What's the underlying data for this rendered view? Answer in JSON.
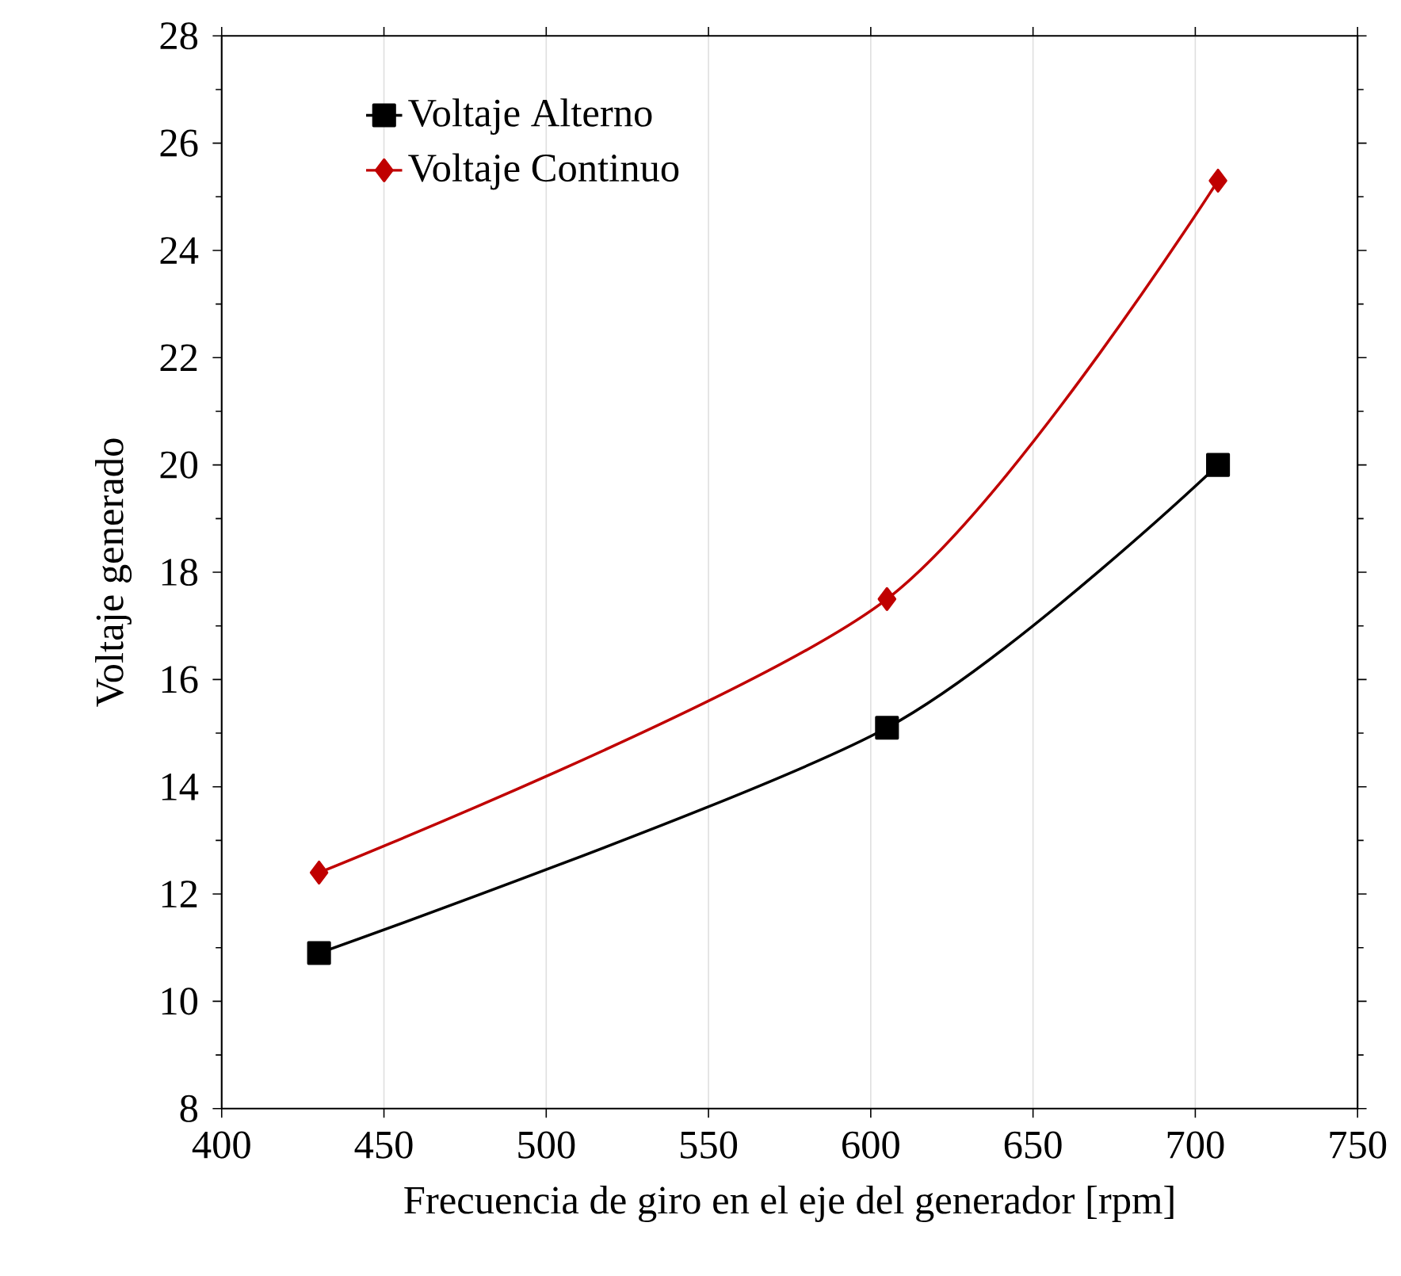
{
  "chart_data": {
    "type": "line",
    "xlabel": "Frecuencia de giro en el eje del generador [rpm]",
    "ylabel": "Voltaje generado",
    "series": [
      {
        "name": "Voltaje Alterno",
        "color": "#000000",
        "marker": "square",
        "x": [
          430,
          605,
          707
        ],
        "values": [
          10.9,
          15.1,
          20.0
        ]
      },
      {
        "name": "Voltaje Continuo",
        "color": "#c00000",
        "marker": "diamond",
        "x": [
          430,
          605,
          707
        ],
        "values": [
          12.4,
          17.5,
          25.3
        ]
      }
    ],
    "xlim": [
      400,
      750
    ],
    "xticks": [
      400,
      450,
      500,
      550,
      600,
      650,
      700,
      750
    ],
    "ylim": [
      8,
      28
    ],
    "yticks": [
      8,
      10,
      12,
      14,
      16,
      18,
      20,
      22,
      24,
      26,
      28
    ],
    "grid": "x",
    "legend": "top left",
    "line_style": "solid"
  }
}
